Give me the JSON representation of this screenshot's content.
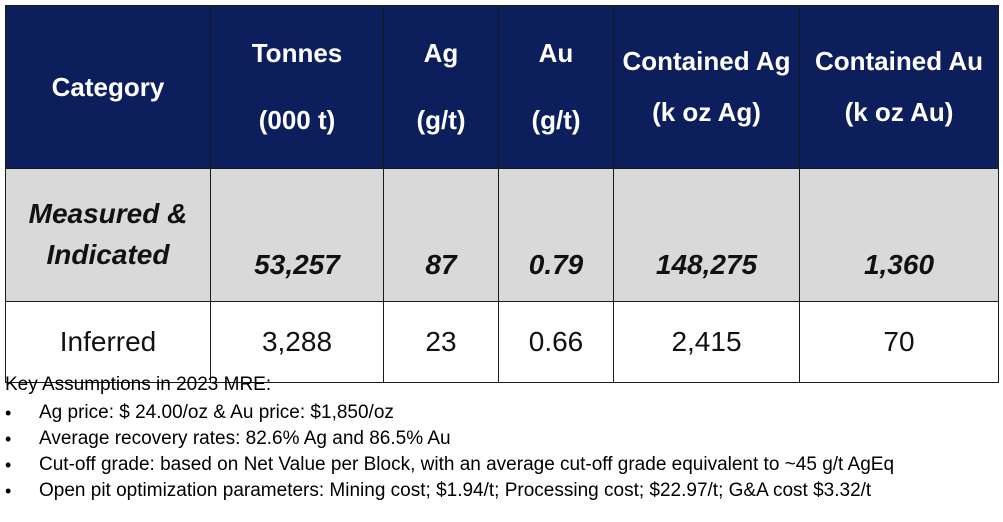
{
  "table": {
    "headers": [
      {
        "top": "Category",
        "bottom": ""
      },
      {
        "top": "Tonnes",
        "bottom": "(000 t)"
      },
      {
        "top": "Ag",
        "bottom": "(g/t)"
      },
      {
        "top": "Au",
        "bottom": "(g/t)"
      },
      {
        "top": "Contained Ag",
        "bottom": "(k oz Ag)"
      },
      {
        "top": "Contained Au",
        "bottom": "(k oz Au)"
      }
    ],
    "rows": [
      {
        "category_line1": "Measured &",
        "category_line2": "Indicated",
        "tonnes": "53,257",
        "ag": "87",
        "au": "0.79",
        "contained_ag": "148,275",
        "contained_au": "1,360"
      },
      {
        "category_line1": "Inferred",
        "category_line2": "",
        "tonnes": "3,288",
        "ag": "23",
        "au": "0.66",
        "contained_ag": "2,415",
        "contained_au": "70"
      }
    ]
  },
  "notes": {
    "title": "Key Assumptions in 2023 MRE:",
    "bullet_glyph": "•",
    "items": [
      "Ag price: $ 24.00/oz & Au price: $1,850/oz",
      "Average recovery rates: 82.6% Ag and 86.5% Au",
      "Cut-off grade: based on Net Value per Block, with an average cut-off grade equivalent to ~45 g/t AgEq",
      "Open pit optimization parameters: Mining cost; $1.94/t; Processing cost; $22.97/t; G&A cost $3.32/t"
    ]
  },
  "colors": {
    "header_bg": "#0c1f5c",
    "header_text": "#ffffff",
    "highlight_row_bg": "#d9d9d9",
    "border": "#1a1a1a"
  }
}
